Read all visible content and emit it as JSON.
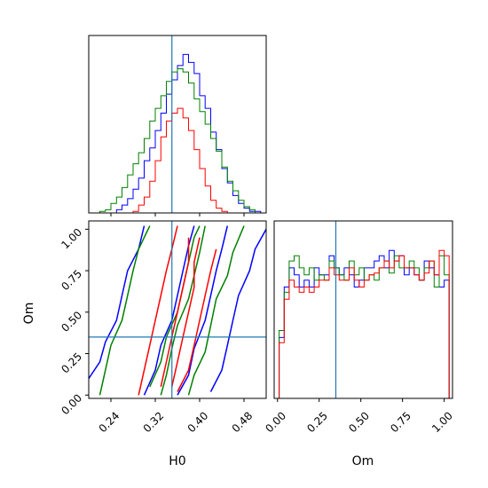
{
  "chart_data": [
    {
      "type": "histogram",
      "panel": "H0 marginal",
      "truth": 0.35,
      "xlim": [
        0.2,
        0.52
      ],
      "x": [
        0.2,
        0.21,
        0.22,
        0.23,
        0.24,
        0.25,
        0.26,
        0.27,
        0.28,
        0.29,
        0.3,
        0.31,
        0.32,
        0.33,
        0.34,
        0.35,
        0.36,
        0.37,
        0.38,
        0.39,
        0.4,
        0.41,
        0.42,
        0.43,
        0.44,
        0.45,
        0.46,
        0.47,
        0.48,
        0.49,
        0.5,
        0.51,
        0.52
      ],
      "series": [
        {
          "color": "#0000ff",
          "values": [
            0,
            0,
            0,
            0,
            0,
            2,
            5,
            9,
            15,
            22,
            33,
            41,
            52,
            63,
            75,
            84,
            93,
            100,
            95,
            88,
            74,
            66,
            51,
            40,
            28,
            19,
            11,
            6,
            3,
            1,
            1,
            0,
            0
          ]
        },
        {
          "color": "#008000",
          "values": [
            0,
            0,
            1,
            2,
            6,
            10,
            16,
            24,
            31,
            38,
            47,
            58,
            66,
            74,
            83,
            89,
            91,
            89,
            82,
            72,
            64,
            56,
            47,
            39,
            29,
            20,
            14,
            8,
            4,
            2,
            0,
            0,
            0
          ]
        },
        {
          "color": "#ff0000",
          "values": [
            0,
            0,
            0,
            0,
            0,
            0,
            0,
            0,
            1,
            5,
            10,
            20,
            33,
            48,
            58,
            63,
            66,
            60,
            52,
            40,
            28,
            17,
            8,
            3,
            1,
            0,
            0,
            0,
            0,
            0,
            0,
            0,
            0
          ]
        }
      ]
    },
    {
      "type": "contour",
      "panel": "H0 vs Om",
      "truth": {
        "H0": 0.35,
        "Om": 0.35
      },
      "xlabel": "H0",
      "ylabel": "Om",
      "xticks": [
        "0.24",
        "0.32",
        "0.40",
        "0.48"
      ],
      "yticks": [
        "0.00",
        "0.25",
        "0.50",
        "0.75",
        "1.00"
      ],
      "xlim": [
        0.2,
        0.52
      ],
      "ylim": [
        -0.02,
        1.05
      ],
      "series": [
        {
          "color": "#0000ff",
          "levels": [
            [
              [
                0.2,
                0.1
              ],
              [
                0.22,
                0.2
              ],
              [
                0.23,
                0.32
              ],
              [
                0.25,
                0.45
              ],
              [
                0.26,
                0.6
              ],
              [
                0.27,
                0.75
              ],
              [
                0.29,
                0.88
              ],
              [
                0.3,
                1.02
              ]
            ],
            [
              [
                0.3,
                0.0
              ],
              [
                0.32,
                0.15
              ],
              [
                0.33,
                0.3
              ],
              [
                0.35,
                0.45
              ],
              [
                0.36,
                0.6
              ],
              [
                0.37,
                0.75
              ],
              [
                0.38,
                0.9
              ],
              [
                0.39,
                1.02
              ]
            ],
            [
              [
                0.36,
                0.0
              ],
              [
                0.38,
                0.12
              ],
              [
                0.39,
                0.28
              ],
              [
                0.41,
                0.45
              ],
              [
                0.42,
                0.6
              ],
              [
                0.43,
                0.75
              ],
              [
                0.44,
                0.88
              ],
              [
                0.45,
                1.02
              ]
            ],
            [
              [
                0.42,
                0.02
              ],
              [
                0.44,
                0.15
              ],
              [
                0.45,
                0.3
              ],
              [
                0.46,
                0.45
              ],
              [
                0.47,
                0.6
              ],
              [
                0.49,
                0.75
              ],
              [
                0.5,
                0.88
              ],
              [
                0.52,
                1.0
              ]
            ]
          ]
        },
        {
          "color": "#008000",
          "levels": [
            [
              [
                0.22,
                0.0
              ],
              [
                0.23,
                0.15
              ],
              [
                0.24,
                0.3
              ],
              [
                0.26,
                0.45
              ],
              [
                0.27,
                0.6
              ],
              [
                0.28,
                0.75
              ],
              [
                0.29,
                0.88
              ],
              [
                0.31,
                1.02
              ]
            ],
            [
              [
                0.33,
                0.0
              ],
              [
                0.34,
                0.12
              ],
              [
                0.35,
                0.28
              ],
              [
                0.36,
                0.42
              ],
              [
                0.38,
                0.58
              ],
              [
                0.39,
                0.72
              ],
              [
                0.4,
                0.86
              ],
              [
                0.41,
                1.02
              ]
            ],
            [
              [
                0.38,
                0.0
              ],
              [
                0.39,
                0.12
              ],
              [
                0.41,
                0.26
              ],
              [
                0.42,
                0.42
              ],
              [
                0.43,
                0.58
              ],
              [
                0.45,
                0.72
              ],
              [
                0.46,
                0.86
              ],
              [
                0.48,
                1.02
              ]
            ],
            [
              [
                0.31,
                0.05
              ],
              [
                0.33,
                0.2
              ],
              [
                0.34,
                0.35
              ],
              [
                0.36,
                0.5
              ],
              [
                0.37,
                0.65
              ],
              [
                0.38,
                0.8
              ],
              [
                0.39,
                0.95
              ],
              [
                0.4,
                1.02
              ]
            ]
          ]
        },
        {
          "color": "#ff0000",
          "levels": [
            [
              [
                0.29,
                0.0
              ],
              [
                0.3,
                0.15
              ],
              [
                0.31,
                0.3
              ],
              [
                0.32,
                0.45
              ],
              [
                0.33,
                0.6
              ],
              [
                0.34,
                0.75
              ],
              [
                0.35,
                0.88
              ],
              [
                0.36,
                1.02
              ]
            ],
            [
              [
                0.33,
                0.05
              ],
              [
                0.34,
                0.2
              ],
              [
                0.35,
                0.35
              ],
              [
                0.36,
                0.5
              ],
              [
                0.37,
                0.65
              ],
              [
                0.38,
                0.8
              ],
              [
                0.38,
                0.95
              ]
            ],
            [
              [
                0.35,
                0.05
              ],
              [
                0.36,
                0.2
              ],
              [
                0.37,
                0.35
              ],
              [
                0.38,
                0.5
              ],
              [
                0.39,
                0.65
              ],
              [
                0.39,
                0.8
              ],
              [
                0.4,
                0.95
              ]
            ],
            [
              [
                0.36,
                0.02
              ],
              [
                0.38,
                0.15
              ],
              [
                0.39,
                0.3
              ],
              [
                0.4,
                0.45
              ],
              [
                0.41,
                0.6
              ],
              [
                0.42,
                0.75
              ],
              [
                0.43,
                0.88
              ]
            ]
          ]
        }
      ]
    },
    {
      "type": "histogram",
      "panel": "Om marginal",
      "xlabel": "Om",
      "xticks": [
        "0.00",
        "0.25",
        "0.50",
        "0.75",
        "1.00"
      ],
      "truth": 0.35,
      "xlim": [
        -0.02,
        1.05
      ],
      "x": [
        -0.02,
        0.01,
        0.04,
        0.07,
        0.1,
        0.13,
        0.16,
        0.19,
        0.22,
        0.25,
        0.28,
        0.31,
        0.34,
        0.37,
        0.4,
        0.43,
        0.46,
        0.49,
        0.52,
        0.55,
        0.58,
        0.61,
        0.64,
        0.67,
        0.7,
        0.73,
        0.76,
        0.79,
        0.82,
        0.85,
        0.88,
        0.91,
        0.94,
        0.97,
        1.0,
        1.03,
        1.05
      ],
      "series": [
        {
          "color": "#0000ff",
          "values": [
            0,
            35,
            64,
            75,
            71,
            64,
            68,
            64,
            75,
            71,
            71,
            82,
            75,
            71,
            75,
            71,
            64,
            68,
            75,
            75,
            79,
            82,
            75,
            85,
            79,
            82,
            71,
            75,
            71,
            68,
            79,
            75,
            71,
            64,
            68,
            0
          ]
        },
        {
          "color": "#008000",
          "values": [
            0,
            39,
            61,
            79,
            82,
            75,
            71,
            75,
            68,
            71,
            68,
            79,
            75,
            71,
            68,
            79,
            71,
            75,
            68,
            71,
            68,
            75,
            79,
            72,
            82,
            75,
            75,
            79,
            75,
            68,
            75,
            79,
            64,
            82,
            71,
            0
          ]
        },
        {
          "color": "#ff0000",
          "values": [
            0,
            32,
            57,
            68,
            64,
            61,
            64,
            61,
            64,
            68,
            68,
            75,
            71,
            68,
            68,
            75,
            68,
            64,
            68,
            71,
            72,
            75,
            79,
            75,
            79,
            82,
            75,
            75,
            71,
            68,
            72,
            79,
            71,
            85,
            82,
            0
          ]
        }
      ]
    }
  ]
}
